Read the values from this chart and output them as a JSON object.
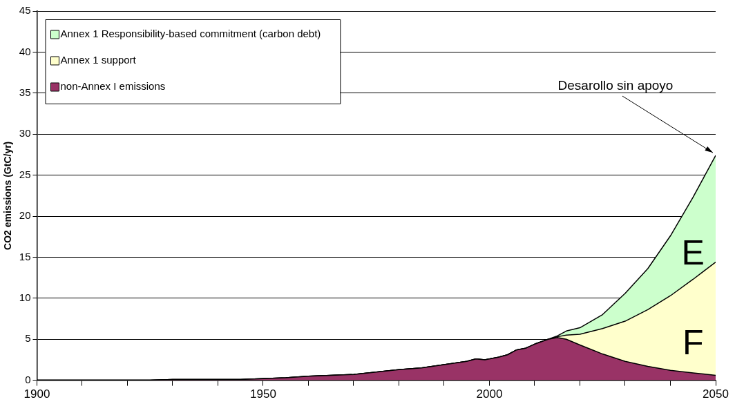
{
  "chart_data": {
    "type": "area",
    "stacked": true,
    "ylabel": "CO2 emissions (GtC/yr)",
    "x": [
      1900,
      1910,
      1920,
      1925,
      1930,
      1940,
      1945,
      1950,
      1955,
      1960,
      1965,
      1970,
      1975,
      1980,
      1985,
      1990,
      1995,
      1997,
      1999,
      2002,
      2004,
      2006,
      2008,
      2010,
      2013,
      2015,
      2017,
      2020,
      2025,
      2030,
      2035,
      2040,
      2045,
      2050
    ],
    "series": [
      {
        "name": "non-Annex I emissions",
        "color": "#993366",
        "values": [
          0,
          0,
          0,
          0,
          0.1,
          0.1,
          0.1,
          0.2,
          0.3,
          0.5,
          0.6,
          0.7,
          1.0,
          1.3,
          1.5,
          1.9,
          2.3,
          2.6,
          2.5,
          2.8,
          3.1,
          3.7,
          3.9,
          4.4,
          5.0,
          5.2,
          5.0,
          4.3,
          3.2,
          2.3,
          1.7,
          1.2,
          0.9,
          0.6
        ]
      },
      {
        "name": "Annex 1 support",
        "color": "#ffffcc",
        "values": [
          0,
          0,
          0,
          0,
          0,
          0,
          0,
          0,
          0,
          0,
          0,
          0,
          0,
          0,
          0,
          0,
          0,
          0,
          0,
          0,
          0,
          0,
          0,
          0,
          0,
          0.1,
          0.5,
          1.3,
          3.1,
          4.9,
          6.9,
          9.1,
          11.4,
          13.8
        ]
      },
      {
        "name": "Annex 1 Responsibility-based commitment (carbon debt)",
        "color": "#ccffcc",
        "values": [
          0,
          0,
          0,
          0,
          0,
          0,
          0,
          0,
          0,
          0,
          0,
          0,
          0,
          0,
          0,
          0,
          0,
          0,
          0,
          0,
          0,
          0,
          0,
          0,
          0,
          0.1,
          0.5,
          0.8,
          1.7,
          3.4,
          5.0,
          7.3,
          10.0,
          13.0
        ]
      }
    ],
    "xlim": [
      1900,
      2050
    ],
    "xticks": [
      1900,
      {
        "value": 1910,
        "label": null
      },
      {
        "value": 1920,
        "label": null
      },
      {
        "value": 1930,
        "label": null
      },
      {
        "value": 1940,
        "label": null
      },
      1950,
      {
        "value": 1960,
        "label": null
      },
      {
        "value": 1970,
        "label": null
      },
      {
        "value": 1980,
        "label": null
      },
      {
        "value": 1990,
        "label": null
      },
      2000,
      {
        "value": 2010,
        "label": null
      },
      {
        "value": 2020,
        "label": null
      },
      {
        "value": 2030,
        "label": null
      },
      {
        "value": 2040,
        "label": null
      },
      2050
    ],
    "ylim": [
      0,
      45
    ],
    "yticks": [
      0,
      5,
      10,
      15,
      20,
      25,
      30,
      35,
      40,
      45
    ],
    "grid": "y",
    "legend": "top left",
    "annotations": [
      {
        "text": "Desarollo sin apoyo",
        "x": 2050,
        "y": 27.4
      },
      "E",
      "F"
    ]
  }
}
